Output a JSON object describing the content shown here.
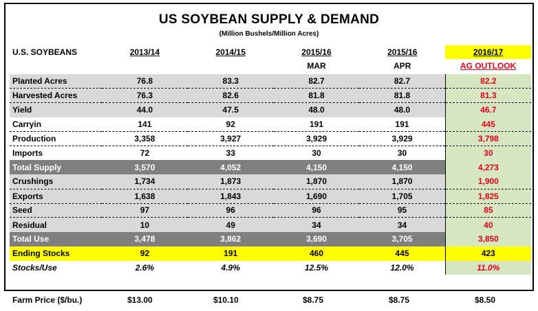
{
  "title": "US SOYBEAN SUPPLY & DEMAND",
  "subtitle": "(Million Bushels/Million Acres)",
  "header": {
    "row_label": "U.S. SOYBEANS",
    "cols": [
      "2013/14",
      "2014/15",
      "2015/16",
      "2015/16",
      "2016/17"
    ],
    "subs": [
      "",
      "",
      "MAR",
      "APR",
      "AG OUTLOOK"
    ]
  },
  "rows": [
    {
      "label": "Planted Acres",
      "values": [
        "76.8",
        "83.3",
        "82.7",
        "82.7",
        "82.2"
      ]
    },
    {
      "label": "Harvested Acres",
      "values": [
        "76.3",
        "82.6",
        "81.8",
        "81.8",
        "81.3"
      ]
    },
    {
      "label": "Yield",
      "values": [
        "44.0",
        "47.5",
        "48.0",
        "48.0",
        "46.7"
      ]
    },
    {
      "label": "Carryin",
      "values": [
        "141",
        "92",
        "191",
        "191",
        "445"
      ]
    },
    {
      "label": "Production",
      "values": [
        "3,358",
        "3,927",
        "3,929",
        "3,929",
        "3,798"
      ]
    },
    {
      "label": "Imports",
      "values": [
        "72",
        "33",
        "30",
        "30",
        "30"
      ]
    },
    {
      "label": "Total Supply",
      "values": [
        "3,570",
        "4,052",
        "4,150",
        "4,150",
        "4,273"
      ]
    },
    {
      "label": "Crushings",
      "values": [
        "1,734",
        "1,873",
        "1,870",
        "1,870",
        "1,900"
      ]
    },
    {
      "label": "Exports",
      "values": [
        "1,638",
        "1,843",
        "1,690",
        "1,705",
        "1,825"
      ]
    },
    {
      "label": "Seed",
      "values": [
        "97",
        "96",
        "96",
        "95",
        "85"
      ]
    },
    {
      "label": "Residual",
      "values": [
        "10",
        "49",
        "34",
        "34",
        "40"
      ]
    },
    {
      "label": "Total Use",
      "values": [
        "3,478",
        "3,862",
        "3,690",
        "3,705",
        "3,850"
      ]
    },
    {
      "label": "Ending Stocks",
      "values": [
        "92",
        "191",
        "460",
        "445",
        "423"
      ]
    },
    {
      "label": "Stocks/Use",
      "values": [
        "2.6%",
        "4.9%",
        "12.5%",
        "12.0%",
        "11.0%"
      ]
    }
  ],
  "price": {
    "label": "Farm Price ($/bu.)",
    "values": [
      "$13.00",
      "$10.10",
      "$8.75",
      "$8.75",
      "$8.50"
    ]
  },
  "colors": {
    "outlook_red": "#e0001b",
    "highlight_yellow": "#ffff00",
    "outlook_green": "#d6e6c0",
    "total_gray": "#7f7f7f"
  }
}
